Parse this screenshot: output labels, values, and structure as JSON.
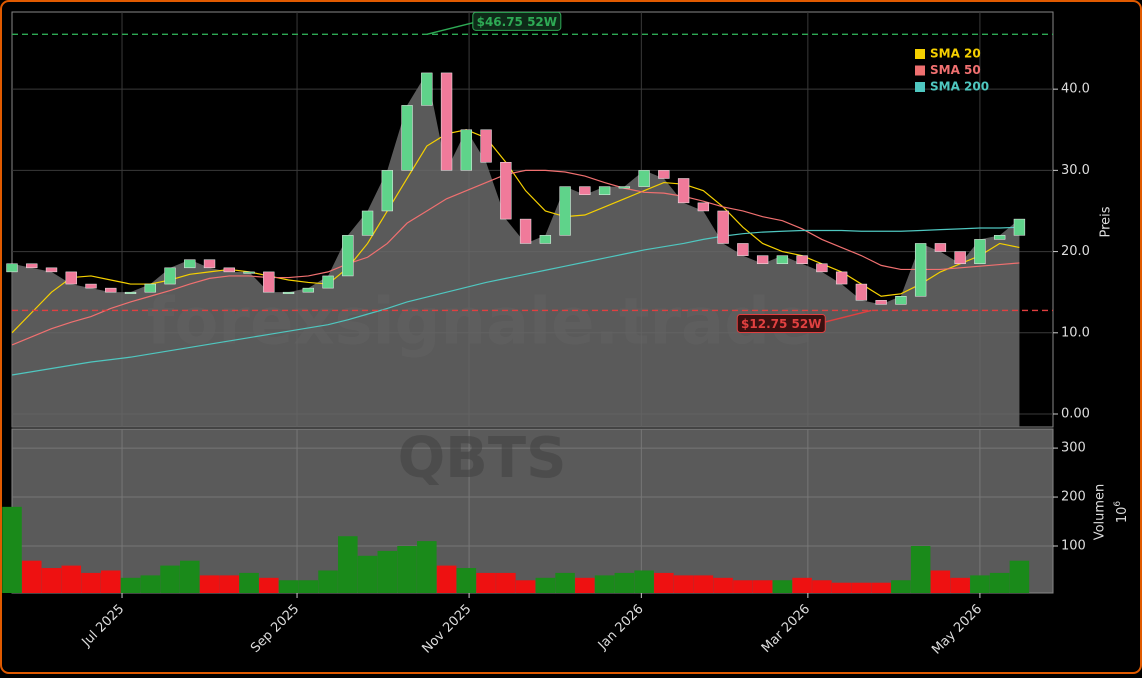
{
  "chart_data": {
    "type": "candlestick",
    "watermark": "forexsignale.trade",
    "ticker": "QBTS",
    "categories": [
      null,
      null,
      null,
      null,
      null,
      null,
      null,
      null,
      null,
      null,
      null,
      null,
      null,
      null,
      null,
      null,
      null,
      null,
      null,
      null,
      null,
      null,
      null,
      null,
      null,
      null,
      null,
      null,
      null,
      null,
      null,
      null,
      null,
      null,
      null,
      null,
      null,
      null,
      null,
      null,
      null,
      null,
      null,
      null,
      null,
      null,
      null,
      null,
      null,
      null,
      null,
      null
    ],
    "xlim": [
      0,
      52.7
    ],
    "xticks": [
      {
        "value": 5.57,
        "label": "Jul 2025"
      },
      {
        "value": 14.43,
        "label": "Sep 2025"
      },
      {
        "value": 23.14,
        "label": "Nov 2025"
      },
      {
        "value": 31.86,
        "label": "Jan 2026"
      },
      {
        "value": 40.29,
        "label": "Mar 2026"
      },
      {
        "value": 49.0,
        "label": "May 2026"
      }
    ],
    "open": [
      17.5,
      18.5,
      18,
      17.5,
      16,
      15.5,
      15,
      15,
      16,
      18,
      19,
      18,
      17.5,
      17.5,
      15,
      15,
      15.5,
      17,
      22,
      25,
      30,
      38,
      42,
      30,
      35,
      31,
      24,
      21,
      22,
      28,
      27,
      28,
      28,
      30,
      29,
      26,
      25,
      21,
      19.5,
      18.5,
      19.5,
      18.5,
      17.5,
      16,
      14,
      13.5,
      14.5,
      21,
      20,
      18.5,
      21.5,
      22
    ],
    "close": [
      18.5,
      18,
      17.5,
      16,
      15.5,
      15,
      15,
      16,
      18,
      19,
      18,
      17.5,
      17.5,
      15,
      15,
      15.5,
      17,
      22,
      25,
      30,
      38,
      42,
      30,
      35,
      31,
      24,
      21,
      22,
      28,
      27,
      28,
      28,
      30,
      29,
      26,
      25,
      21,
      19.5,
      18.5,
      19.5,
      18.5,
      17.5,
      16,
      14,
      13.5,
      14.5,
      21,
      20,
      18.5,
      21.5,
      22,
      24
    ],
    "up_color": "#5fd38a",
    "down_color": "#f07a9a",
    "area_color": "#6a6a6a",
    "series": [
      {
        "name": "SMA 20",
        "color": "#f5d000",
        "values": [
          10,
          12.5,
          15,
          16.8,
          17,
          16.5,
          16,
          16,
          16.5,
          17.2,
          17.5,
          17.8,
          17.5,
          17,
          16.5,
          16.2,
          16,
          18,
          21,
          25,
          29,
          33,
          34.5,
          35,
          34,
          31,
          27.5,
          25,
          24.3,
          24.5,
          25.5,
          26.5,
          27.5,
          28.5,
          28.3,
          27.5,
          25.5,
          23,
          21,
          20,
          19.5,
          18.5,
          17.5,
          16,
          14.5,
          14.8,
          16,
          17.5,
          18.5,
          19.5,
          21,
          20.5
        ]
      },
      {
        "name": "SMA 50",
        "color": "#f07070",
        "values": [
          8.5,
          9.5,
          10.5,
          11.3,
          12,
          13,
          13.8,
          14.5,
          15.2,
          16,
          16.7,
          17,
          17,
          16.8,
          16.8,
          17,
          17.5,
          18.5,
          19.3,
          21,
          23.5,
          25,
          26.5,
          27.5,
          28.5,
          29.5,
          30,
          30,
          29.8,
          29.3,
          28.5,
          27.8,
          27.3,
          27.2,
          26.8,
          26.2,
          25.5,
          25,
          24.3,
          23.8,
          22.8,
          21.5,
          20.5,
          19.5,
          18.3,
          17.8,
          17.8,
          17.8,
          18,
          18.2,
          18.4,
          18.6
        ]
      },
      {
        "name": "SMA 200",
        "color": "#4fc7c0",
        "values": [
          4.8,
          5.2,
          5.6,
          6,
          6.4,
          6.7,
          7,
          7.4,
          7.8,
          8.2,
          8.6,
          9,
          9.4,
          9.8,
          10.2,
          10.6,
          11,
          11.6,
          12.3,
          13,
          13.8,
          14.4,
          15,
          15.6,
          16.2,
          16.7,
          17.2,
          17.7,
          18.2,
          18.7,
          19.2,
          19.7,
          20.2,
          20.6,
          21,
          21.5,
          21.9,
          22.2,
          22.4,
          22.5,
          22.6,
          22.6,
          22.6,
          22.5,
          22.5,
          22.5,
          22.6,
          22.7,
          22.8,
          22.9,
          22.9,
          23
        ]
      }
    ],
    "hlines": [
      {
        "value": 46.75,
        "label": "$46.75 52W",
        "color": "#2eaa55",
        "at": 21
      },
      {
        "value": 12.75,
        "label": "$12.75 52W",
        "color": "#e04040",
        "at": 43.5
      }
    ],
    "ylabel": "Preis",
    "ylim": [
      -1.6,
      49.5
    ],
    "yticks": [
      {
        "value": 0,
        "label": "0.00"
      },
      {
        "value": 10,
        "label": "10.0"
      },
      {
        "value": 20,
        "label": "20.0"
      },
      {
        "value": 30,
        "label": "30.0"
      },
      {
        "value": 40,
        "label": "40.0"
      }
    ],
    "grid": true,
    "volume": {
      "ylabel": "Volumen",
      "unit": "10",
      "unit_exp": "6",
      "ylim": [
        4,
        339
      ],
      "yticks": [
        100,
        200,
        300
      ],
      "values": [
        180,
        70,
        55,
        60,
        45,
        50,
        35,
        40,
        60,
        70,
        40,
        40,
        45,
        35,
        30,
        30,
        50,
        120,
        80,
        90,
        100,
        110,
        60,
        55,
        45,
        45,
        30,
        35,
        45,
        35,
        40,
        45,
        50,
        45,
        40,
        40,
        35,
        30,
        30,
        30,
        35,
        30,
        25,
        25,
        25,
        30,
        100,
        50,
        35,
        40,
        45,
        70
      ]
    }
  }
}
